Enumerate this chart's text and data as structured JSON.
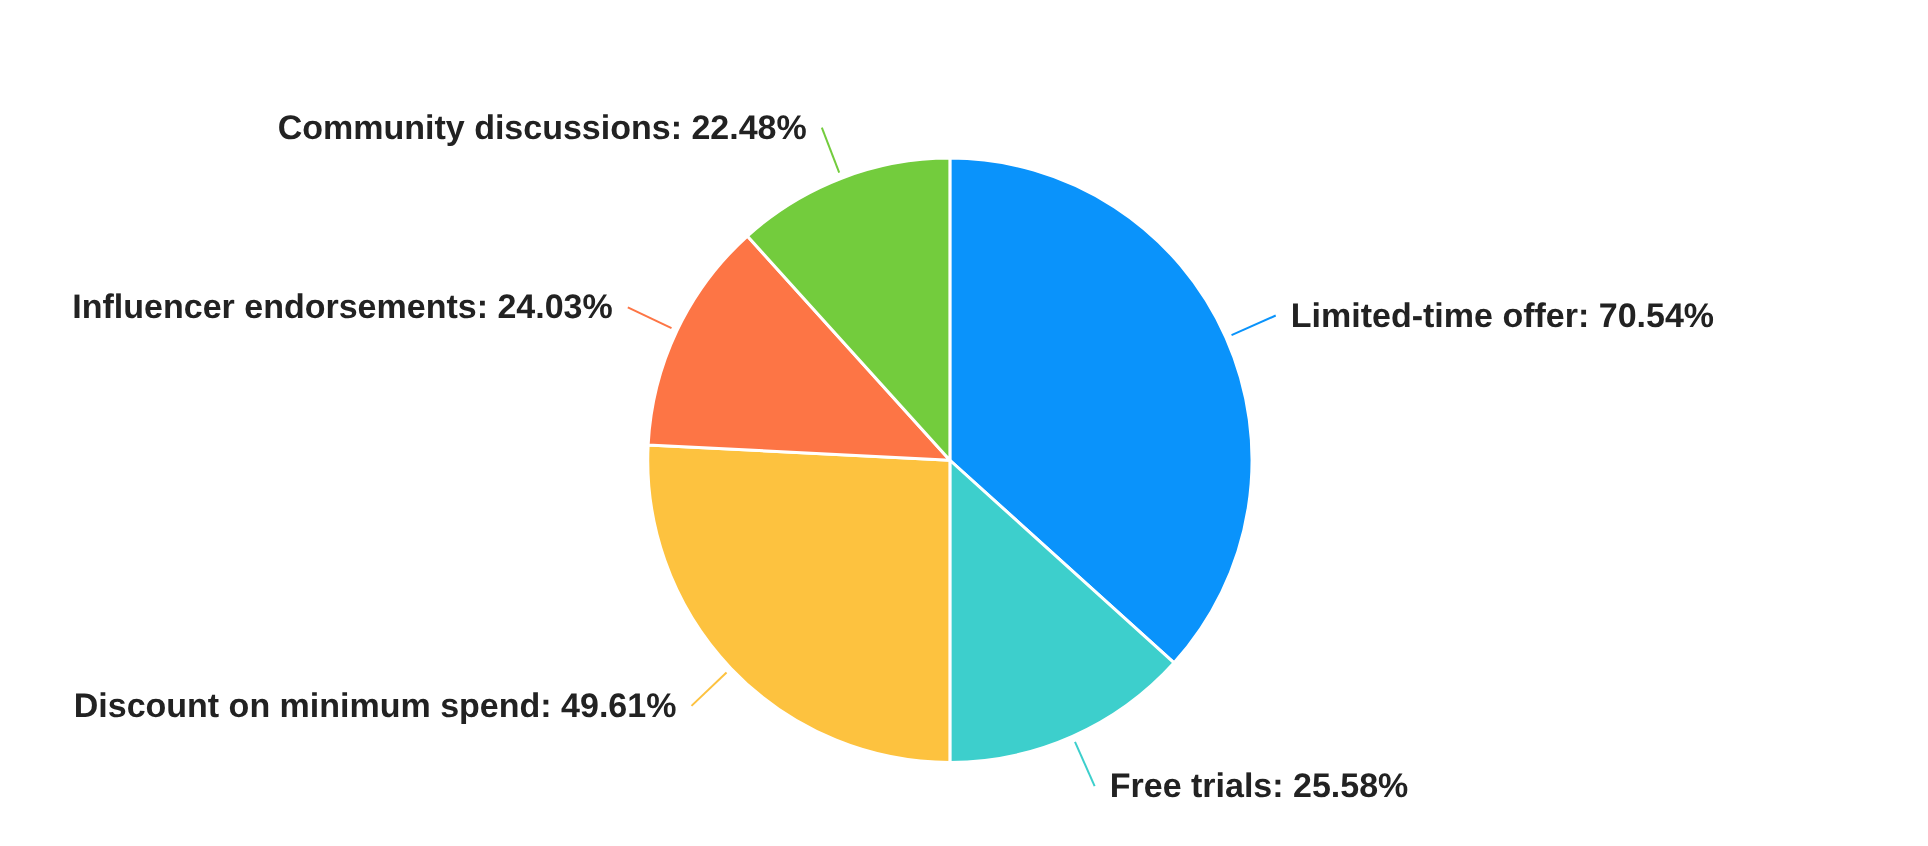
{
  "chart_data": {
    "type": "pie",
    "categories": [
      "Limited-time offer",
      "Free trials",
      "Discount on minimum spend",
      "Influencer endorsements",
      "Community discussions"
    ],
    "values": [
      70.54,
      25.58,
      49.61,
      24.03,
      22.48
    ],
    "value_labels": [
      "70.54%",
      "25.58%",
      "49.61%",
      "24.03%",
      "22.48%"
    ],
    "colors": [
      "#0a93fb",
      "#3dcfcc",
      "#fdc23f",
      "#fd7545",
      "#73cc3d"
    ]
  }
}
